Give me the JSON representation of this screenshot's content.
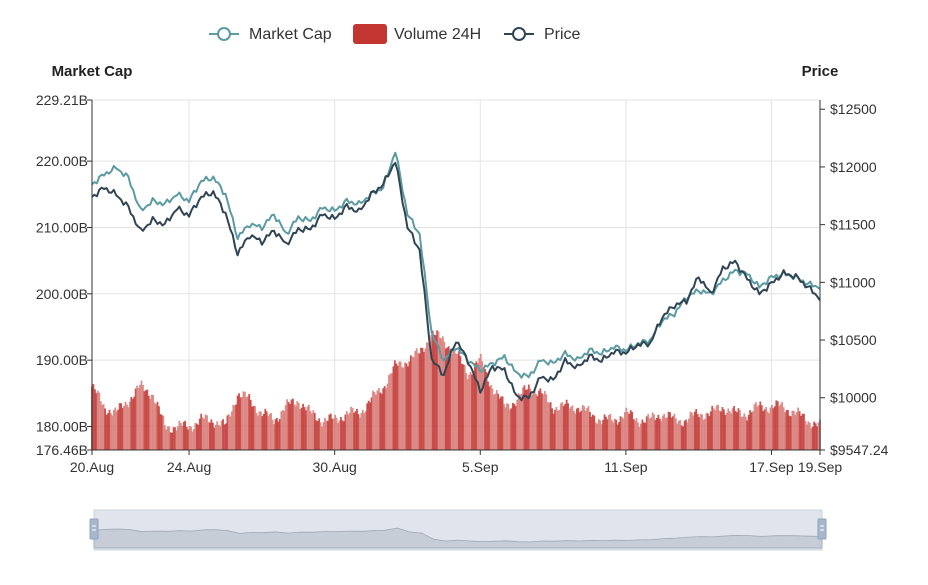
{
  "legend": [
    {
      "name": "Market Cap",
      "color": "#5b9ba1",
      "symbol": "line-circle"
    },
    {
      "name": "Volume 24H",
      "color": "#c23531",
      "symbol": "rect"
    },
    {
      "name": "Price",
      "color": "#2f4554",
      "symbol": "line-circle"
    }
  ],
  "chart_data": {
    "type": "line",
    "title": "",
    "xlabel": "",
    "left_axis": {
      "name": "Market Cap",
      "ylim": [
        176.46,
        229.21
      ],
      "unit": "B",
      "tick_values": [
        176.46,
        180,
        190,
        200,
        210,
        220,
        229.21
      ],
      "tick_labels": [
        "176.46B",
        "180.00B",
        "190.00B",
        "200.00B",
        "210.00B",
        "220.00B",
        "229.21B"
      ]
    },
    "right_axis": {
      "name": "Price",
      "ylim": [
        9547.24,
        12580
      ],
      "unit": "$",
      "tick_values": [
        9547.24,
        10000,
        10500,
        11000,
        11500,
        12000,
        12500
      ],
      "tick_labels": [
        "$9547.24",
        "$10000",
        "$10500",
        "$11000",
        "$11500",
        "$12000",
        "$12500"
      ]
    },
    "x_axis": {
      "range_days": [
        0,
        30
      ],
      "tick_days": [
        0,
        4,
        10,
        16,
        22,
        28,
        30
      ],
      "tick_labels": [
        "20.Aug",
        "24.Aug",
        "30.Aug",
        "5.Sep",
        "11.Sep",
        "17.Sep",
        "19.Sep"
      ]
    },
    "series": [
      {
        "name": "Market Cap",
        "axis": "left",
        "color": "#5b9ba1",
        "x": [
          0,
          0.5,
          1,
          1.5,
          2,
          2.5,
          3,
          3.5,
          4,
          4.5,
          5,
          5.5,
          6,
          6.5,
          7,
          7.5,
          8,
          8.5,
          9,
          9.5,
          10,
          10.5,
          11,
          11.5,
          12,
          12.5,
          13,
          13.5,
          14,
          14.5,
          15,
          15.5,
          16,
          16.5,
          17,
          17.5,
          18,
          18.5,
          19,
          19.5,
          20,
          20.5,
          21,
          21.5,
          22,
          22.5,
          23,
          23.5,
          24,
          24.5,
          25,
          25.5,
          26,
          26.5,
          27,
          27.5,
          28,
          28.5,
          29,
          29.5,
          30
        ],
        "values": [
          216.5,
          218,
          219,
          217.5,
          212.5,
          214,
          213.5,
          215,
          214,
          217,
          217.5,
          215,
          208.5,
          210.5,
          210,
          212,
          209,
          211.5,
          211,
          213,
          212.5,
          214,
          213.5,
          215,
          216,
          221.5,
          212,
          209,
          194,
          190,
          192,
          190,
          188.5,
          189.5,
          190.5,
          188,
          187.5,
          190,
          189.5,
          191,
          190,
          191.5,
          191,
          192,
          191.5,
          192.5,
          193,
          196,
          197,
          199.5,
          200.5,
          200,
          202,
          203.5,
          203,
          201,
          202.5,
          203,
          202.5,
          201.5,
          201
        ]
      },
      {
        "name": "Price",
        "axis": "right",
        "color": "#2f4554",
        "x": [
          0,
          0.5,
          1,
          1.5,
          2,
          2.5,
          3,
          3.5,
          4,
          4.5,
          5,
          5.5,
          6,
          6.5,
          7,
          7.5,
          8,
          8.5,
          9,
          9.5,
          10,
          10.5,
          11,
          11.5,
          12,
          12.5,
          13,
          13.5,
          14,
          14.5,
          15,
          15.5,
          16,
          16.5,
          17,
          17.5,
          18,
          18.5,
          19,
          19.5,
          20,
          20.5,
          21,
          21.5,
          22,
          22.5,
          23,
          23.5,
          24,
          24.5,
          25,
          25.5,
          26,
          26.5,
          27,
          27.5,
          28,
          28.5,
          29,
          29.5,
          30
        ],
        "values": [
          11740,
          11820,
          11760,
          11650,
          11440,
          11540,
          11500,
          11640,
          11580,
          11740,
          11780,
          11600,
          11250,
          11410,
          11350,
          11450,
          11330,
          11460,
          11460,
          11590,
          11550,
          11660,
          11610,
          11760,
          11850,
          12050,
          11480,
          11280,
          10330,
          10200,
          10500,
          10320,
          10060,
          10270,
          10240,
          10010,
          10000,
          10180,
          10150,
          10320,
          10260,
          10360,
          10320,
          10400,
          10390,
          10460,
          10470,
          10700,
          10800,
          10840,
          11050,
          10900,
          11120,
          11180,
          11030,
          10900,
          10990,
          11080,
          11050,
          10960,
          10860
        ]
      },
      {
        "name": "Volume 24H",
        "axis": "left",
        "color": "#c23531",
        "style": "bars",
        "x": [
          0,
          0.5,
          1,
          1.5,
          2,
          2.5,
          3,
          3.5,
          4,
          4.5,
          5,
          5.5,
          6,
          6.5,
          7,
          7.5,
          8,
          8.5,
          9,
          9.5,
          10,
          10.5,
          11,
          11.5,
          12,
          12.5,
          13,
          13.5,
          14,
          14.5,
          15,
          15.5,
          16,
          16.5,
          17,
          17.5,
          18,
          18.5,
          19,
          19.5,
          20,
          20.5,
          21,
          21.5,
          22,
          22.5,
          23,
          23.5,
          24,
          24.5,
          25,
          25.5,
          26,
          26.5,
          27,
          27.5,
          28,
          28.5,
          29,
          29.5,
          30
        ],
        "values": [
          186,
          183,
          182,
          184,
          186,
          185,
          180,
          180,
          180,
          181,
          181,
          180,
          185,
          184,
          182,
          181,
          183,
          184,
          182,
          181,
          181,
          182,
          182,
          184,
          186,
          189,
          190,
          191,
          194,
          193,
          191,
          188,
          190,
          186,
          183,
          184,
          186,
          185,
          183,
          183,
          183,
          182,
          181,
          181,
          182,
          181,
          181,
          182,
          181,
          181,
          182,
          182,
          183,
          182,
          182,
          183,
          183,
          183,
          182,
          181,
          180
        ]
      }
    ]
  },
  "data_zoom": {
    "start_percent": 0,
    "end_percent": 100
  }
}
